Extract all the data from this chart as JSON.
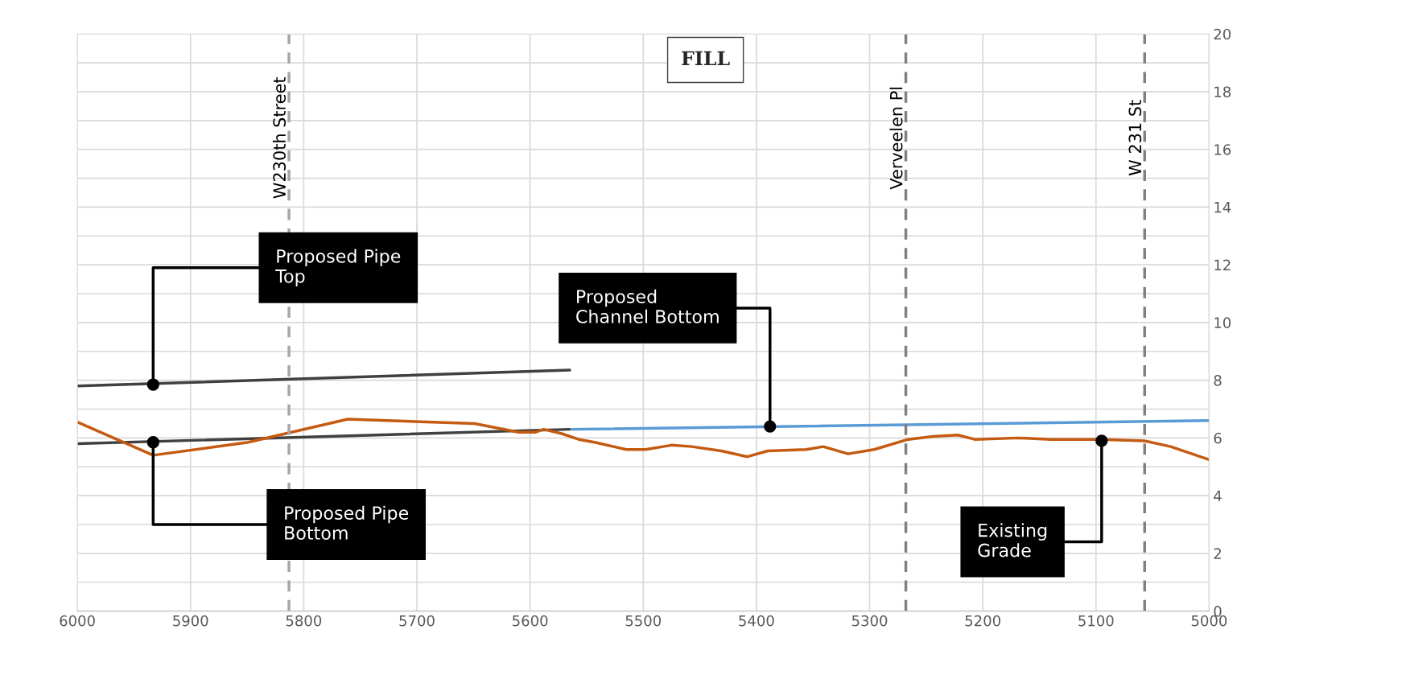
{
  "chart_data": {
    "type": "line",
    "xlim": [
      6000,
      5000
    ],
    "xticks": [
      6000,
      5900,
      5800,
      5700,
      5600,
      5500,
      5400,
      5300,
      5200,
      5100,
      5000
    ],
    "ylim": [
      0,
      20
    ],
    "yticks": [
      0,
      {
        "value": 1,
        "label": null
      },
      2,
      {
        "value": 3,
        "label": null
      },
      4,
      {
        "value": 5,
        "label": null
      },
      6,
      {
        "value": 7,
        "label": null
      },
      8,
      {
        "value": 9,
        "label": null
      },
      10,
      {
        "value": 11,
        "label": null
      },
      12,
      {
        "value": 13,
        "label": null
      },
      14,
      {
        "value": 15,
        "label": null
      },
      16,
      {
        "value": 17,
        "label": null
      },
      18,
      {
        "value": 19,
        "label": null
      },
      20
    ],
    "grid": true,
    "series": [
      {
        "color": "#404040",
        "x": [
          6000,
          5565
        ],
        "values": [
          7.8,
          8.35
        ]
      },
      {
        "color": "#404040",
        "x": [
          6000,
          5565
        ],
        "values": [
          5.8,
          6.3
        ]
      },
      {
        "color": "#5b9bd5",
        "x": [
          5563,
          5000
        ],
        "values": [
          6.3,
          6.6
        ]
      },
      {
        "color": "#c55a11",
        "x": [
          6000,
          5933,
          5849,
          5761,
          5649,
          5610,
          5595,
          5588,
          5572,
          5557,
          5543,
          5515,
          5498,
          5475,
          5457,
          5431,
          5408,
          5390,
          5356,
          5341,
          5319,
          5296,
          5266,
          5244,
          5222,
          5207,
          5169,
          5140,
          5095,
          5057,
          5034,
          5000
        ],
        "values": [
          6.55,
          5.4,
          5.85,
          6.65,
          6.5,
          6.2,
          6.2,
          6.3,
          6.15,
          5.95,
          5.85,
          5.6,
          5.6,
          5.75,
          5.7,
          5.55,
          5.35,
          5.55,
          5.6,
          5.7,
          5.45,
          5.6,
          5.95,
          6.05,
          6.1,
          5.95,
          6.0,
          5.95,
          5.95,
          5.9,
          5.7,
          5.25
        ]
      }
    ],
    "ref_lines": [
      {
        "axis": "x",
        "value": 5813,
        "label": "W230th Street",
        "color": "#a6a6a6",
        "line_style": "dashed"
      },
      {
        "axis": "x",
        "value": 5268,
        "label": "Verveelen Pl",
        "color": "#808080",
        "line_style": "dashed"
      },
      {
        "axis": "x",
        "value": 5057,
        "label": "W 231 St",
        "color": "#808080",
        "line_style": "dashed"
      }
    ],
    "annotations": [
      "FILL",
      {
        "text": "Proposed Pipe\nTop",
        "x": 5933,
        "y": 7.85
      },
      {
        "text": "Proposed Pipe\nBottom",
        "x": 5933,
        "y": 5.85
      },
      {
        "text": "Proposed\nChannel Bottom",
        "x": 5388,
        "y": 6.4
      },
      {
        "text": "Existing\nGrade",
        "x": 5095,
        "y": 5.9
      }
    ]
  }
}
